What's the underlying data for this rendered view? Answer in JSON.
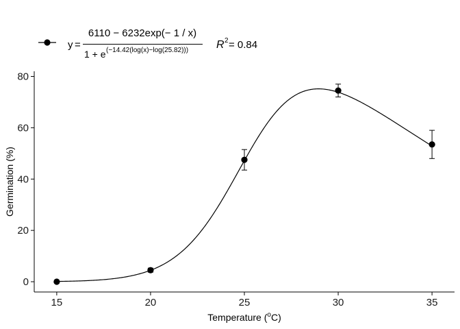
{
  "chart_data": {
    "type": "scatter",
    "xlabel_main": "Temperature (",
    "xlabel_sup": "o",
    "xlabel_tail": "C)",
    "ylabel": "Germination (%)",
    "xlim": [
      13.8,
      36.2
    ],
    "ylim": [
      -4,
      82
    ],
    "x_ticks": [
      15,
      20,
      25,
      30,
      35
    ],
    "y_ticks": [
      0,
      20,
      40,
      60,
      80
    ],
    "grid": false,
    "legend_position": "top-left",
    "colors": {
      "points": "#000000",
      "curve": "#000000"
    },
    "series": [
      {
        "x": [
          15,
          20,
          25,
          30,
          35
        ],
        "y": [
          0,
          4.5,
          47.5,
          74.5,
          53.5
        ],
        "error_low": [
          0,
          3.7,
          43.5,
          72.0,
          48.0
        ],
        "error_high": [
          0,
          5.3,
          51.5,
          77.0,
          59.0
        ]
      }
    ],
    "fit": {
      "model": "(6110-6232*exp(-1/x))/(1+exp(-14.42*(log(x)-log(25.82))))",
      "lhs": "y",
      "eq_sign": "=",
      "numerator": "6110 − 6232exp(− 1 / x)",
      "denominator_base": "1 + e",
      "denominator_exp": "(−14.42(log(x)−log(25.82)))",
      "r2_symbol": "R",
      "r2_sup": "2",
      "r2_text": " = 0.84"
    }
  }
}
